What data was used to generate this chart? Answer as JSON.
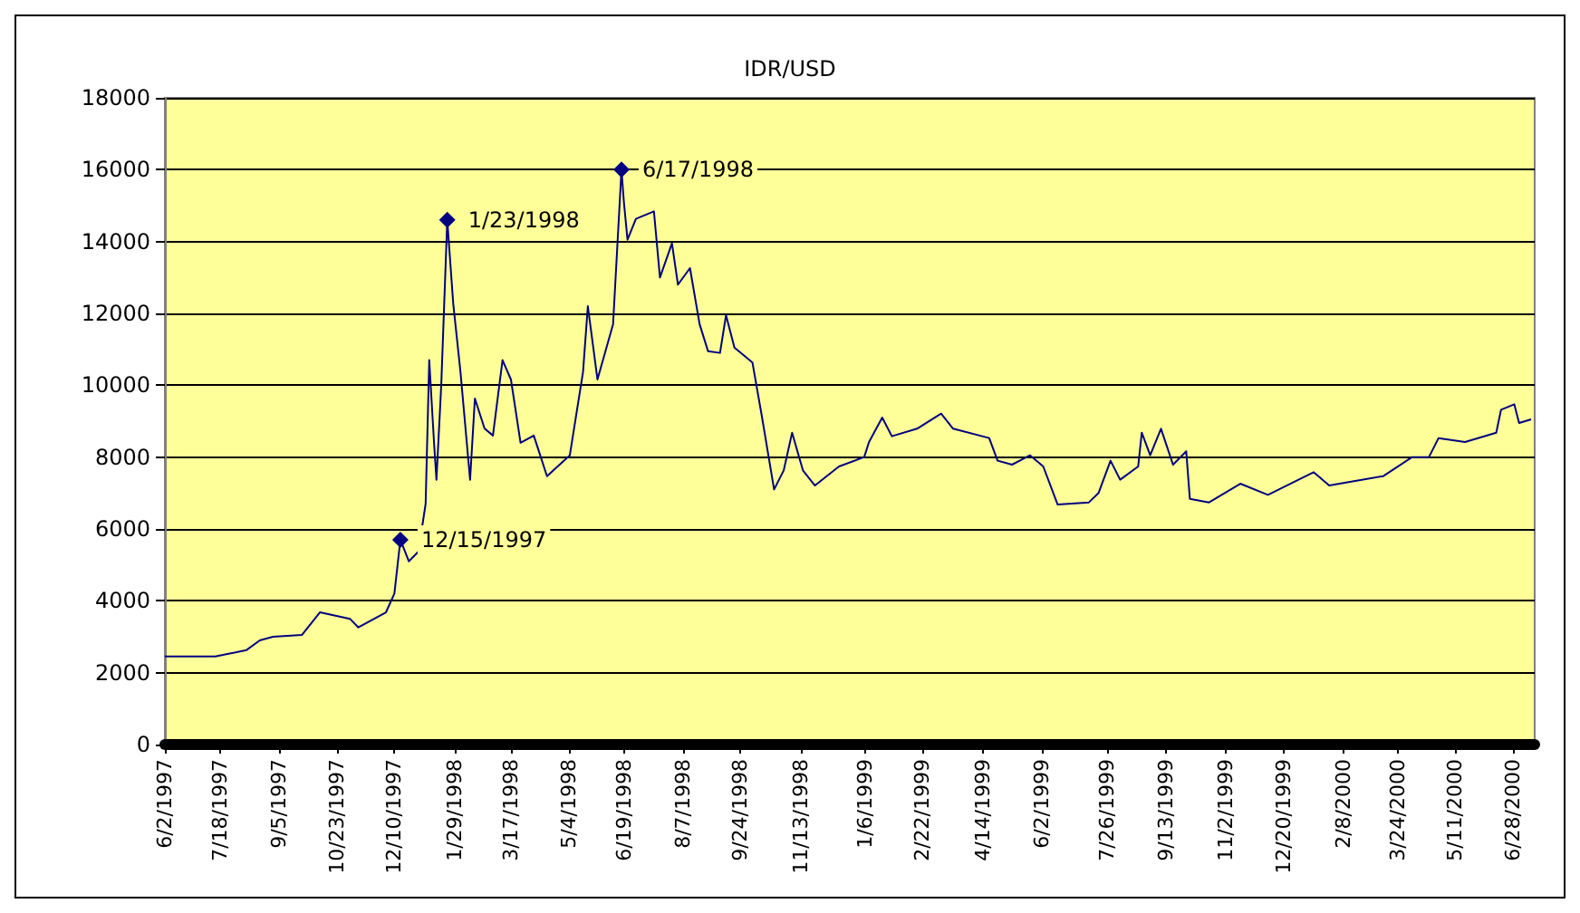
{
  "chart_data": {
    "type": "line",
    "title": "IDR/USD",
    "x": [
      "1997-06-02",
      "1997-07-14",
      "1997-08-09",
      "1997-08-20",
      "1997-08-31",
      "1997-09-24",
      "1997-10-09",
      "1997-11-03",
      "1997-11-10",
      "1997-12-03",
      "1997-12-10",
      "1997-12-15",
      "1997-12-22",
      "1997-12-30",
      "1998-01-05",
      "1998-01-08",
      "1998-01-12",
      "1998-01-14",
      "1998-01-18",
      "1998-01-23",
      "1998-01-28",
      "1998-02-03",
      "1998-02-11",
      "1998-02-15",
      "1998-02-23",
      "1998-03-02",
      "1998-03-10",
      "1998-03-17",
      "1998-03-25",
      "1998-04-05",
      "1998-04-16",
      "1998-05-05",
      "1998-05-16",
      "1998-05-20",
      "1998-05-28",
      "1998-06-10",
      "1998-06-17",
      "1998-06-19",
      "1998-06-22",
      "1998-06-29",
      "1998-07-14",
      "1998-07-19",
      "1998-07-29",
      "1998-08-03",
      "1998-08-13",
      "1998-08-21",
      "1998-08-28",
      "1998-09-07",
      "1998-09-12",
      "1998-09-19",
      "1998-10-04",
      "1998-10-12",
      "1998-10-22",
      "1998-10-30",
      "1998-11-06",
      "1998-11-15",
      "1998-11-25",
      "1998-12-15",
      "1999-01-05",
      "1999-01-09",
      "1999-01-20",
      "1999-01-28",
      "1999-02-18",
      "1999-03-10",
      "1999-03-20",
      "1999-04-19",
      "1999-04-26",
      "1999-05-08",
      "1999-05-23",
      "1999-06-03",
      "1999-06-15",
      "1999-07-11",
      "1999-07-19",
      "1999-07-29",
      "1999-08-06",
      "1999-08-21",
      "1999-08-24",
      "1999-08-31",
      "1999-09-09",
      "1999-09-19",
      "1999-09-30",
      "1999-10-03",
      "1999-10-19",
      "1999-11-14",
      "1999-12-07",
      "2000-01-14",
      "2000-01-27",
      "2000-03-12",
      "2000-04-05",
      "2000-04-19",
      "2000-04-27",
      "2000-05-19",
      "2000-06-14",
      "2000-06-18",
      "2000-06-29",
      "2000-07-03",
      "2000-07-13"
    ],
    "series": [
      {
        "color": "#000080",
        "values": [
          2450,
          2450,
          2630,
          2900,
          3000,
          3050,
          3680,
          3500,
          3260,
          3680,
          4200,
          5700,
          5100,
          5370,
          6700,
          10700,
          8400,
          7370,
          10000,
          14600,
          12260,
          10370,
          7370,
          9630,
          8800,
          8600,
          10700,
          10160,
          8400,
          8600,
          7470,
          8050,
          10370,
          12200,
          10160,
          11700,
          16000,
          15100,
          14050,
          14630,
          14840,
          13000,
          13950,
          12800,
          13260,
          11700,
          10950,
          10900,
          11950,
          11050,
          10630,
          9100,
          7100,
          7630,
          8680,
          7630,
          7210,
          7740,
          8000,
          8420,
          9100,
          8580,
          8790,
          9210,
          8790,
          8530,
          7900,
          7790,
          8050,
          7740,
          6680,
          6740,
          7000,
          7900,
          7370,
          7740,
          8680,
          8050,
          8790,
          7790,
          8160,
          6840,
          6740,
          7260,
          6950,
          7580,
          7210,
          7470,
          8000,
          8000,
          8530,
          8420,
          8680,
          9320,
          9470,
          8950,
          9050
        ]
      }
    ],
    "annotations": [
      {
        "text": "12/15/1997",
        "x": "1997-12-15",
        "y": 5700
      },
      {
        "text": "1/23/1998",
        "x": "1998-01-23",
        "y": 14600
      },
      {
        "text": "6/17/1998",
        "x": "1998-06-17",
        "y": 16000
      }
    ],
    "xlim": [
      "1997-06-02",
      "2000-07-16"
    ],
    "xticks": [
      {
        "value": "1997-06-02",
        "label": "6/2/1997"
      },
      {
        "value": "1997-07-18",
        "label": "7/18/1997"
      },
      {
        "value": "1997-09-05",
        "label": "9/5/1997"
      },
      {
        "value": "1997-10-23",
        "label": "10/23/1997"
      },
      {
        "value": "1997-12-10",
        "label": "12/10/1997"
      },
      {
        "value": "1998-01-29",
        "label": "1/29/1998"
      },
      {
        "value": "1998-03-17",
        "label": "3/17/1998"
      },
      {
        "value": "1998-05-04",
        "label": "5/4/1998"
      },
      {
        "value": "1998-06-19",
        "label": "6/19/1998"
      },
      {
        "value": "1998-08-07",
        "label": "8/7/1998"
      },
      {
        "value": "1998-09-24",
        "label": "9/24/1998"
      },
      {
        "value": "1998-11-13",
        "label": "11/13/1998"
      },
      {
        "value": "1999-01-06",
        "label": "1/6/1999"
      },
      {
        "value": "1999-02-22",
        "label": "2/22/1999"
      },
      {
        "value": "1999-04-14",
        "label": "4/14/1999"
      },
      {
        "value": "1999-06-02",
        "label": "6/2/1999"
      },
      {
        "value": "1999-07-26",
        "label": "7/26/1999"
      },
      {
        "value": "1999-09-13",
        "label": "9/13/1999"
      },
      {
        "value": "1999-11-02",
        "label": "11/2/1999"
      },
      {
        "value": "1999-12-20",
        "label": "12/20/1999"
      },
      {
        "value": "2000-02-08",
        "label": "2/8/2000"
      },
      {
        "value": "2000-03-24",
        "label": "3/24/2000"
      },
      {
        "value": "2000-05-11",
        "label": "5/11/2000"
      },
      {
        "value": "2000-06-28",
        "label": "6/28/2000"
      }
    ],
    "ylim": [
      0,
      18000
    ],
    "yticks": [
      0,
      2000,
      4000,
      6000,
      8000,
      10000,
      12000,
      14000,
      16000,
      18000
    ],
    "grid": "y",
    "marker": "none",
    "line_style": "solid"
  }
}
